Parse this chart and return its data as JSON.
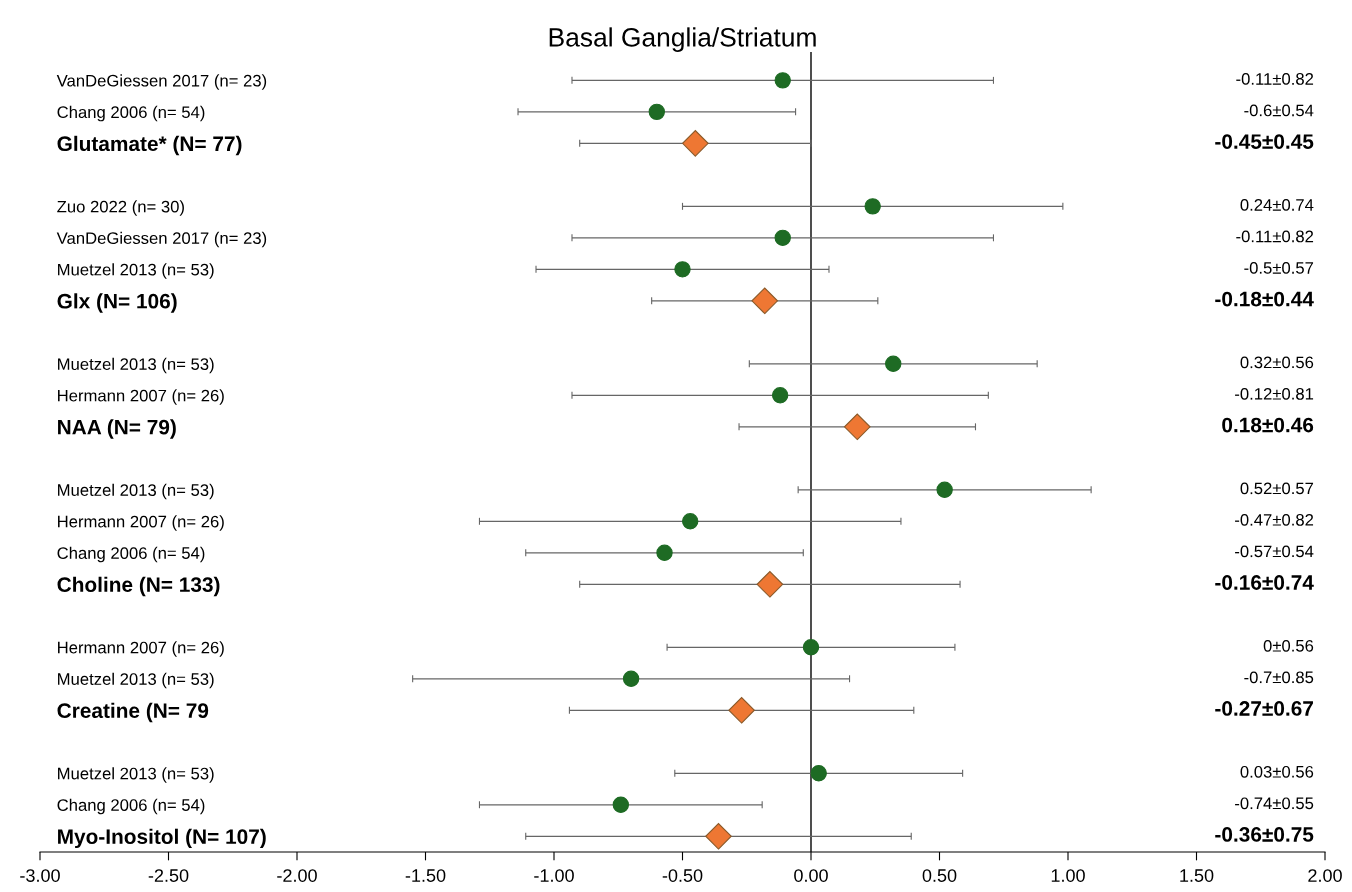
{
  "chart_data": {
    "type": "scatter",
    "title": "Basal Ganglia/Striatum",
    "orientation": "horizontal",
    "categories": [
      "VanDeGiessen 2017 (n= 23)",
      "Chang 2006 (n= 54)",
      "Glutamate* (N= 77)",
      null,
      "Zuo 2022 (n= 30)",
      "VanDeGiessen 2017 (n= 23)",
      "Muetzel 2013 (n= 53)",
      "Glx (N= 106)",
      null,
      "Muetzel 2013 (n= 53)",
      "Hermann 2007 (n= 26)",
      "NAA (N= 79)",
      null,
      "Muetzel 2013 (n= 53)",
      "Hermann 2007 (n= 26)",
      "Chang 2006 (n= 54)",
      "Choline (N= 133)",
      null,
      "Hermann 2007 (n= 26)",
      "Muetzel 2013 (n= 53)",
      "Creatine (N= 79",
      null,
      "Muetzel 2013 (n= 53)",
      "Chang 2006 (n= 54)",
      "Myo-Inositol (N= 107)"
    ],
    "series": [
      {
        "color": "#1e6b24",
        "marker": "circle",
        "values": [
          -0.11,
          -0.6,
          null,
          null,
          0.24,
          -0.11,
          -0.5,
          null,
          null,
          0.32,
          -0.12,
          null,
          null,
          0.52,
          -0.47,
          -0.57,
          null,
          null,
          0,
          -0.7,
          null,
          null,
          0.03,
          -0.74,
          null
        ],
        "errors": [
          0.82,
          0.54,
          null,
          null,
          0.74,
          0.82,
          0.57,
          null,
          null,
          0.56,
          0.81,
          null,
          null,
          0.57,
          0.82,
          0.54,
          null,
          null,
          0.56,
          0.85,
          null,
          null,
          0.56,
          0.55,
          null
        ]
      },
      {
        "color": "#ee7733",
        "marker": "diamond",
        "values": [
          null,
          null,
          -0.45,
          null,
          null,
          null,
          null,
          -0.18,
          null,
          null,
          null,
          0.18,
          null,
          null,
          null,
          null,
          -0.16,
          null,
          null,
          null,
          -0.27,
          null,
          null,
          null,
          -0.36
        ],
        "errors": [
          null,
          null,
          0.45,
          null,
          null,
          null,
          null,
          0.44,
          null,
          null,
          null,
          0.46,
          null,
          null,
          null,
          null,
          0.74,
          null,
          null,
          null,
          0.67,
          null,
          null,
          null,
          0.75
        ]
      }
    ],
    "annotations": [
      "-0.11±0.82",
      "-0.6±0.54",
      "-0.45±0.45",
      "0.24±0.74",
      "-0.11±0.82",
      "-0.5±0.57",
      "-0.18±0.44",
      "0.32±0.56",
      "-0.12±0.81",
      "0.18±0.46",
      "0.52±0.57",
      "-0.47±0.82",
      "-0.57±0.54",
      "-0.16±0.74",
      "0±0.56",
      "-0.7±0.85",
      "-0.27±0.67",
      "0.03±0.56",
      "-0.74±0.55",
      "-0.36±0.75"
    ],
    "xlim": [
      -3,
      2
    ],
    "xticks": [
      {
        "value": -3,
        "label": "-3.00"
      },
      {
        "value": -2.5,
        "label": "-2.50"
      },
      {
        "value": -2,
        "label": "-2.00"
      },
      {
        "value": -1.5,
        "label": "-1.50"
      },
      {
        "value": -1,
        "label": "-1.00"
      },
      {
        "value": -0.5,
        "label": "-0.50"
      },
      {
        "value": 0,
        "label": "0.00"
      },
      {
        "value": 0.5,
        "label": "0.50"
      },
      {
        "value": 1,
        "label": "1.00"
      },
      {
        "value": 1.5,
        "label": "1.50"
      },
      {
        "value": 2,
        "label": "2.00"
      }
    ],
    "ref_lines": [
      {
        "axis": "x",
        "value": 0,
        "color": "#000000"
      }
    ],
    "grid": false,
    "legend": false
  }
}
